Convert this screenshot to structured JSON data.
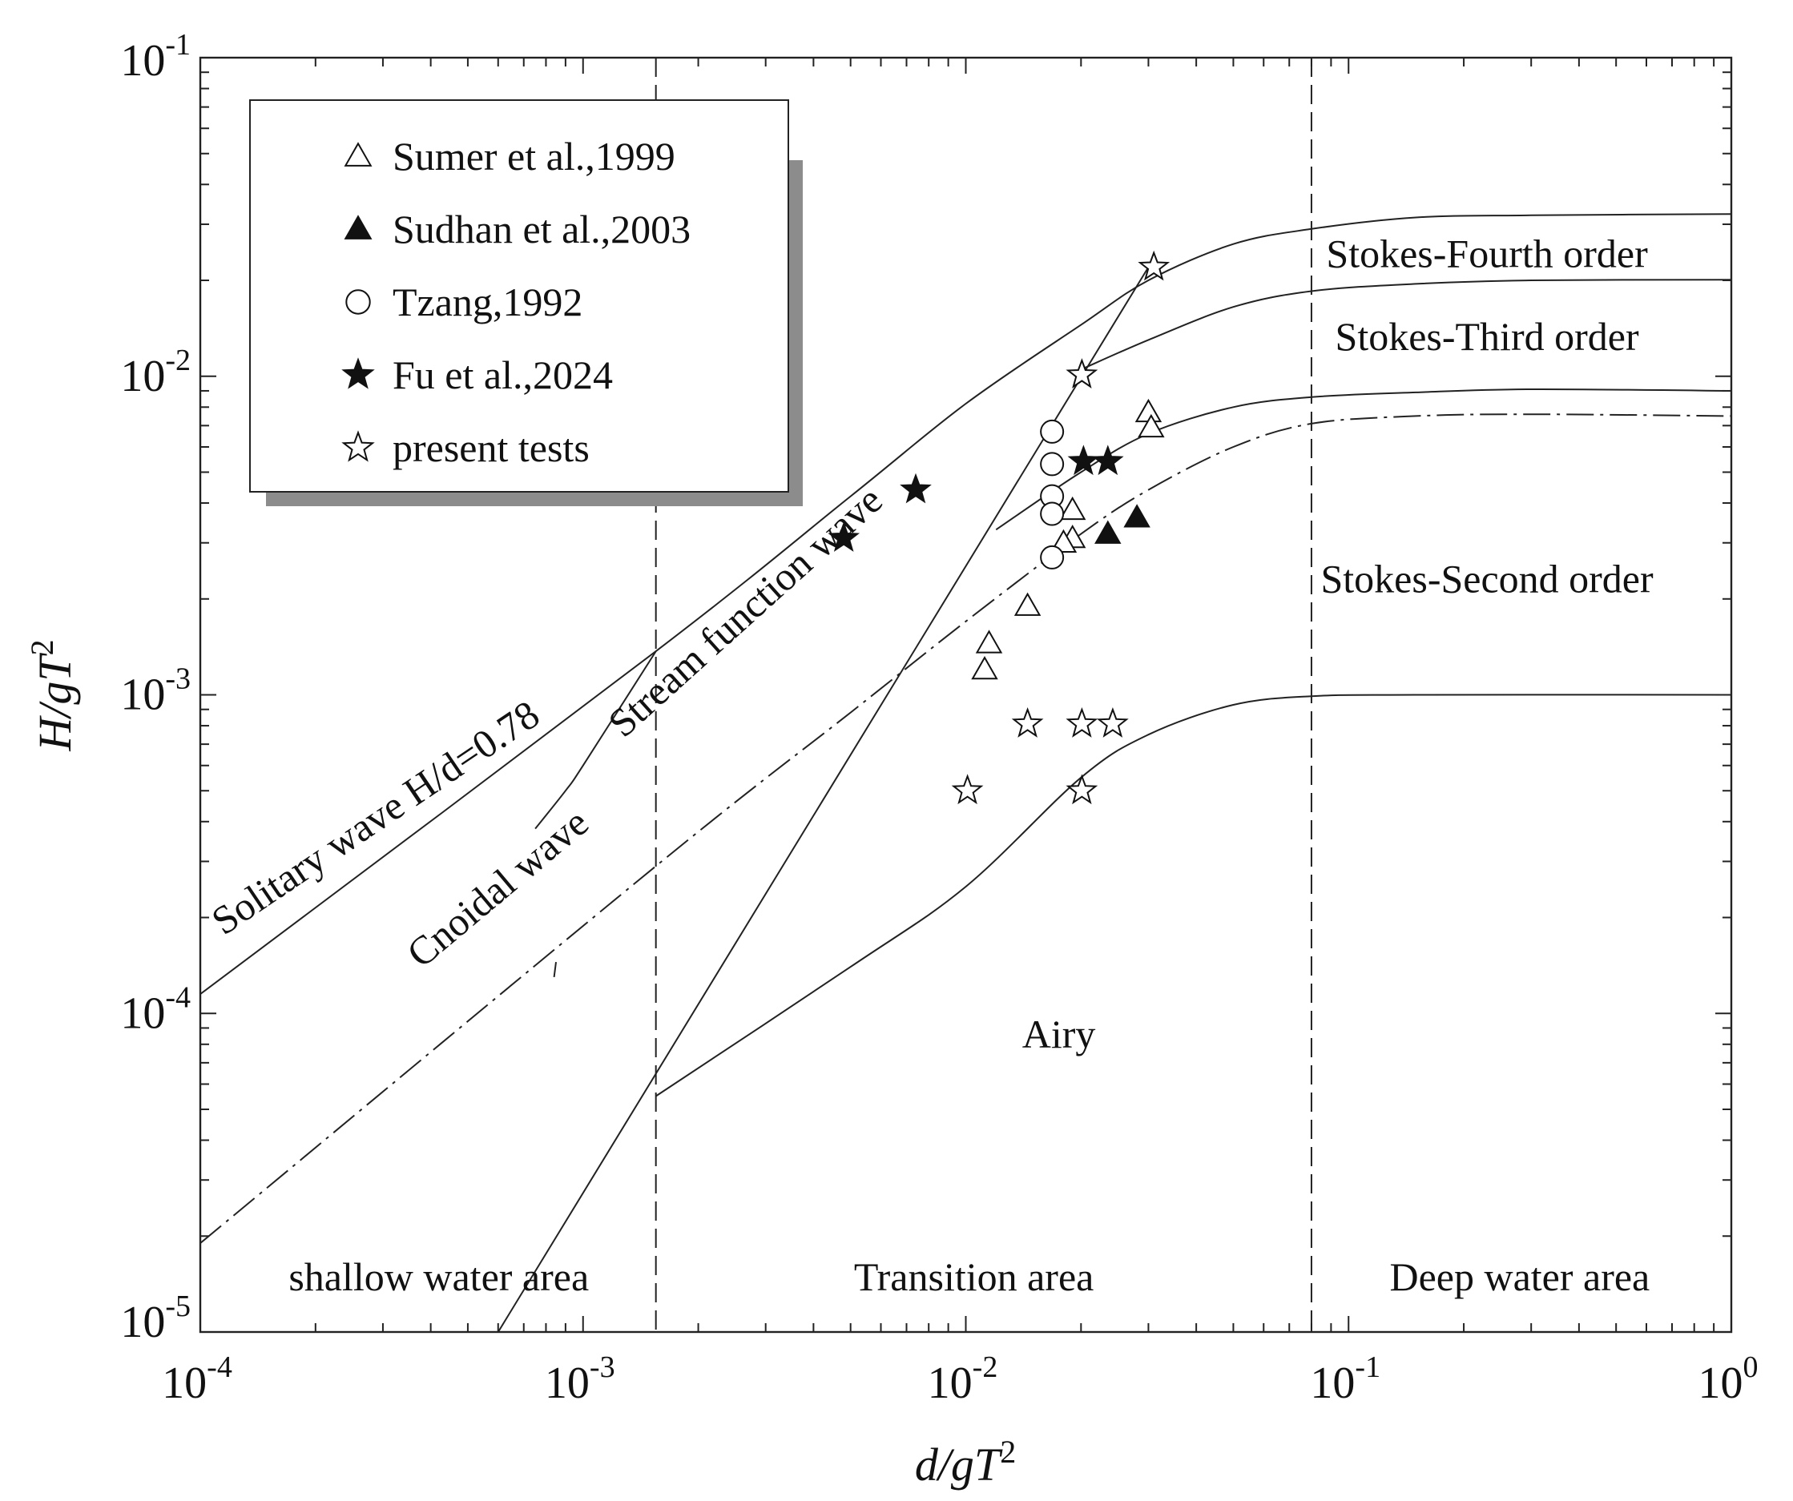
{
  "chart_data": {
    "type": "scatter",
    "title": "",
    "xlabel": "d/gT",
    "xlabel_sup": "2",
    "ylabel": "H/gT",
    "ylabel_sup": "2",
    "x_scale": "log",
    "y_scale": "log",
    "xlim": [
      0.0001,
      1
    ],
    "ylim": [
      1e-05,
      0.1
    ],
    "x_ticks": [
      {
        "value": 0.0001,
        "base": "10",
        "exp": "-4"
      },
      {
        "value": 0.001,
        "base": "10",
        "exp": "-3"
      },
      {
        "value": 0.01,
        "base": "10",
        "exp": "-2"
      },
      {
        "value": 0.1,
        "base": "10",
        "exp": "-1"
      },
      {
        "value": 1,
        "base": "10",
        "exp": "0"
      }
    ],
    "y_ticks": [
      {
        "value": 1e-05,
        "base": "10",
        "exp": "-5"
      },
      {
        "value": 0.0001,
        "base": "10",
        "exp": "-4"
      },
      {
        "value": 0.001,
        "base": "10",
        "exp": "-3"
      },
      {
        "value": 0.01,
        "base": "10",
        "exp": "-2"
      },
      {
        "value": 0.1,
        "base": "10",
        "exp": "-1"
      }
    ],
    "vertical_boundaries": [
      0.00155,
      0.08
    ],
    "legend": {
      "placement": "top-left",
      "entries": [
        {
          "label": "Sumer et al.,1999",
          "marker": "triangle-open"
        },
        {
          "label": "Sudhan et al.,2003",
          "marker": "triangle-filled"
        },
        {
          "label": "Tzang,1992",
          "marker": "circle-open"
        },
        {
          "label": "Fu et al.,2024",
          "marker": "star-filled"
        },
        {
          "label": "present tests",
          "marker": "star-open"
        }
      ]
    },
    "curves": [
      {
        "name": "Solitary wave H/d=0.78",
        "style": "solid",
        "points": [
          [
            0.0001,
            0.000115
          ],
          [
            0.00155,
            0.00137
          ],
          [
            0.005,
            0.0042
          ],
          [
            0.01,
            0.0082
          ],
          [
            0.02,
            0.0145
          ],
          [
            0.03,
            0.02
          ],
          [
            0.05,
            0.026
          ],
          [
            0.08,
            0.029
          ],
          [
            0.15,
            0.0315
          ],
          [
            0.3,
            0.032
          ],
          [
            1,
            0.0323
          ]
        ]
      },
      {
        "name": "Stokes-Fourth/Third boundary",
        "style": "solid",
        "points": [
          [
            0.02,
            0.0105
          ],
          [
            0.03,
            0.013
          ],
          [
            0.05,
            0.0165
          ],
          [
            0.08,
            0.0185
          ],
          [
            0.15,
            0.0195
          ],
          [
            0.3,
            0.02
          ],
          [
            1,
            0.0201
          ]
        ]
      },
      {
        "name": "Stokes-Second/Third boundary",
        "style": "solid",
        "points": [
          [
            0.012,
            0.0033
          ],
          [
            0.02,
            0.005
          ],
          [
            0.03,
            0.0066
          ],
          [
            0.05,
            0.008
          ],
          [
            0.08,
            0.0086
          ],
          [
            0.15,
            0.0089
          ],
          [
            0.3,
            0.0091
          ],
          [
            1,
            0.009
          ]
        ]
      },
      {
        "name": "Breaking-limit dash-dot",
        "style": "dashdot",
        "points": [
          [
            0.0001,
            1.9e-05
          ],
          [
            0.00155,
            0.00029
          ],
          [
            0.005,
            0.00088
          ],
          [
            0.01,
            0.0017
          ],
          [
            0.02,
            0.0032
          ],
          [
            0.03,
            0.0044
          ],
          [
            0.05,
            0.006
          ],
          [
            0.08,
            0.0071
          ],
          [
            0.15,
            0.0075
          ],
          [
            0.3,
            0.0076
          ],
          [
            1,
            0.0075
          ]
        ]
      },
      {
        "name": "Stokes-Second/Airy boundary",
        "style": "solid",
        "points": [
          [
            0.00155,
            5.5e-05
          ],
          [
            0.005,
            0.00014
          ],
          [
            0.01,
            0.00025
          ],
          [
            0.02,
            0.00055
          ],
          [
            0.03,
            0.00075
          ],
          [
            0.05,
            0.00093
          ],
          [
            0.08,
            0.00099
          ],
          [
            0.15,
            0.001
          ],
          [
            1,
            0.001
          ]
        ]
      },
      {
        "name": "Stream function steep line",
        "style": "solid",
        "points": [
          [
            0.0006,
            1e-05
          ],
          [
            0.03,
            0.022
          ]
        ]
      },
      {
        "name": "Cnoidal upper segment",
        "style": "solid",
        "points": [
          [
            0.00155,
            0.00137
          ],
          [
            0.001,
            0.0006
          ],
          [
            0.0009,
            0.0005
          ],
          [
            0.00075,
            0.00038
          ]
        ]
      },
      {
        "name": "Cnoidal lower tick",
        "style": "solid",
        "points": [
          [
            0.00084,
            0.00013
          ],
          [
            0.00085,
            0.000145
          ]
        ]
      }
    ],
    "series": [
      {
        "name": "Sumer et al.,1999",
        "marker": "triangle-open",
        "points": [
          [
            0.03,
            0.0077
          ],
          [
            0.0305,
            0.0069
          ],
          [
            0.019,
            0.0038
          ],
          [
            0.019,
            0.0031
          ],
          [
            0.018,
            0.003
          ],
          [
            0.0145,
            0.0019
          ],
          [
            0.0115,
            0.00145
          ],
          [
            0.0112,
            0.0012
          ]
        ]
      },
      {
        "name": "Sudhan et al.,2003",
        "marker": "triangle-filled",
        "points": [
          [
            0.0235,
            0.0032
          ],
          [
            0.028,
            0.0036
          ]
        ]
      },
      {
        "name": "Tzang,1992",
        "marker": "circle-open",
        "points": [
          [
            0.0168,
            0.0067
          ],
          [
            0.0168,
            0.0053
          ],
          [
            0.0168,
            0.0042
          ],
          [
            0.0168,
            0.0037
          ],
          [
            0.0168,
            0.0027
          ]
        ]
      },
      {
        "name": "Fu et al.,2024",
        "marker": "star-filled",
        "points": [
          [
            0.0048,
            0.0031
          ],
          [
            0.0074,
            0.0044
          ],
          [
            0.0203,
            0.0054
          ],
          [
            0.0235,
            0.0054
          ]
        ]
      },
      {
        "name": "present tests",
        "marker": "star-open",
        "points": [
          [
            0.031,
            0.022
          ],
          [
            0.0201,
            0.0101
          ],
          [
            0.0145,
            0.00081
          ],
          [
            0.0201,
            0.00081
          ],
          [
            0.0242,
            0.00081
          ],
          [
            0.0101,
            0.0005
          ],
          [
            0.0201,
            0.0005
          ]
        ]
      }
    ],
    "annotations": [
      {
        "text": "Solitary wave H/d=0.78",
        "x": 0.0003,
        "y": 0.00038,
        "rotate": -34
      },
      {
        "text": "Cnoidal wave",
        "x": 0.00063,
        "y": 0.00023,
        "rotate": -40
      },
      {
        "text": "Stream function wave",
        "x": 0.0028,
        "y": 0.0017,
        "rotate": -42
      },
      {
        "text": "Stokes-Fourth order",
        "x": 0.23,
        "y": 0.022,
        "rotate": 0
      },
      {
        "text": "Stokes-Third order",
        "x": 0.23,
        "y": 0.0121,
        "rotate": 0
      },
      {
        "text": "Stokes-Second order",
        "x": 0.23,
        "y": 0.0021,
        "rotate": 0
      },
      {
        "text": "Airy",
        "x": 0.0175,
        "y": 7.8e-05,
        "rotate": 0
      },
      {
        "text": "shallow water area",
        "x": 0.00042,
        "y": 1.35e-05,
        "rotate": 0
      },
      {
        "text": "Transition area",
        "x": 0.0105,
        "y": 1.35e-05,
        "rotate": 0
      },
      {
        "text": "Deep water area",
        "x": 0.28,
        "y": 1.35e-05,
        "rotate": 0
      }
    ]
  }
}
